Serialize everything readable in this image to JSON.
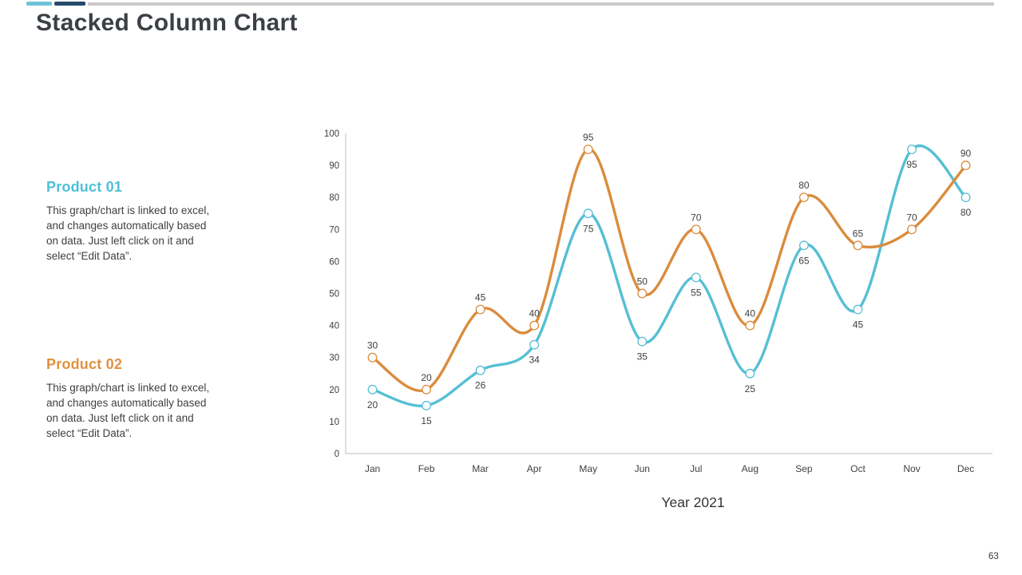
{
  "slide": {
    "title": "Stacked Column Chart",
    "page_number": "63"
  },
  "accent_bar": {
    "segments": [
      {
        "name": "light-blue",
        "color": "#6fc3d8"
      },
      {
        "name": "dark-navy",
        "color": "#264a6b"
      },
      {
        "name": "gray",
        "color": "#c9c9c9"
      }
    ]
  },
  "products": [
    {
      "name": "Product 01",
      "color": "#4ec0d9",
      "description": "This graph/chart is linked to excel,\nand changes automatically based\non data. Just left click on it and\nselect “Edit Data”."
    },
    {
      "name": "Product 02",
      "color": "#e0913f",
      "description": "This graph/chart is linked to excel,\nand changes automatically based\non data. Just left click on it and\nselect “Edit Data”."
    }
  ],
  "chart_data": {
    "type": "line",
    "title": "",
    "xlabel": "Year 2021",
    "ylabel": "",
    "categories": [
      "Jan",
      "Feb",
      "Mar",
      "Apr",
      "May",
      "Jun",
      "Jul",
      "Aug",
      "Sep",
      "Oct",
      "Nov",
      "Dec"
    ],
    "series": [
      {
        "name": "Product 01",
        "color": "#55bfd4",
        "values": [
          20,
          15,
          26,
          34,
          75,
          35,
          55,
          25,
          65,
          45,
          95,
          80
        ],
        "label_position": "below"
      },
      {
        "name": "Product 02",
        "color": "#da8c3d",
        "values": [
          30,
          20,
          45,
          40,
          95,
          50,
          70,
          40,
          80,
          65,
          70,
          90
        ],
        "label_position": "above"
      }
    ],
    "ylim": [
      0,
      100
    ],
    "ytick_step": 10,
    "grid": false,
    "smooth": true,
    "markers": "white-circle",
    "legend": "none",
    "axis_color": "#c9c9c9",
    "text_color": "#404040"
  }
}
